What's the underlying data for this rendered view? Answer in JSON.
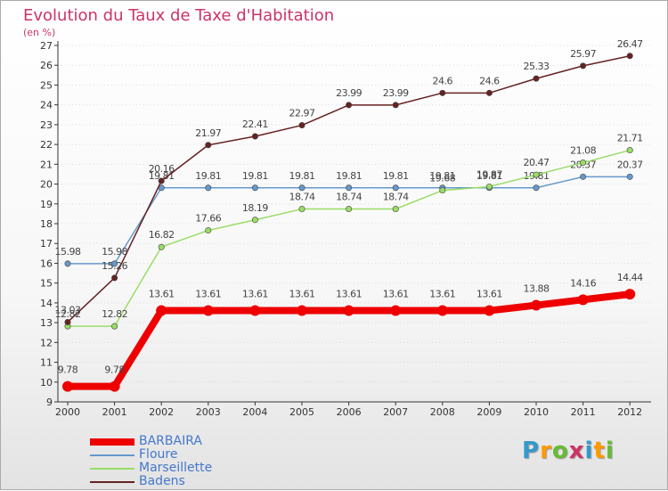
{
  "colors": {
    "BARBAIRA": "#ee0000",
    "Floure": "#6699cc",
    "Marseillette": "#99dd66",
    "Badens": "#662222",
    "axis": "#333333",
    "grid": "#dddddd",
    "title": "#cc3366",
    "legend_text": "#4477cc"
  },
  "logo": {
    "text": "Proxiti",
    "letters": [
      "P",
      "r",
      "o",
      "x",
      "i",
      "t",
      "i"
    ],
    "colors": [
      "#3399cc",
      "#ff9900",
      "#66bb33",
      "#cc3366",
      "#3399cc",
      "#ff9900",
      "#66bb33"
    ]
  },
  "chart_data": {
    "type": "line",
    "title": "Evolution du Taux de Taxe d'Habitation",
    "subtitle": "(en %)",
    "xlabel": "",
    "ylabel": "",
    "x": [
      "2000",
      "2001",
      "2002",
      "2003",
      "2004",
      "2005",
      "2006",
      "2007",
      "2008",
      "2009",
      "2010",
      "2011",
      "2012"
    ],
    "ylim": [
      9,
      27
    ],
    "yticks": [
      "9",
      "10",
      "11",
      "12",
      "13",
      "14",
      "15",
      "16",
      "17",
      "18",
      "19",
      "20",
      "21",
      "22",
      "23",
      "24",
      "25",
      "26",
      "27"
    ],
    "grid": true,
    "legend_position": "bottom-left",
    "series": [
      {
        "name": "BARBAIRA",
        "values": [
          9.78,
          9.78,
          13.61,
          13.61,
          13.61,
          13.61,
          13.61,
          13.61,
          13.61,
          13.61,
          13.88,
          14.16,
          14.44
        ],
        "labels": [
          "9.78",
          "9.78",
          "13.61",
          "13.61",
          "13.61",
          "13.61",
          "13.61",
          "13.61",
          "13.61",
          "13.61",
          "13.88",
          "14.16",
          "14.44"
        ]
      },
      {
        "name": "Floure",
        "values": [
          15.98,
          15.98,
          19.81,
          19.81,
          19.81,
          19.81,
          19.81,
          19.81,
          19.81,
          19.81,
          19.81,
          20.37,
          20.37
        ],
        "labels": [
          "15.98",
          "15.98",
          "19.81",
          "19.81",
          "19.81",
          "19.81",
          "19.81",
          "19.81",
          "19.81",
          "19.81",
          "19.81",
          "20.37",
          "20.37"
        ]
      },
      {
        "name": "Marseillette",
        "values": [
          12.82,
          12.82,
          16.82,
          17.66,
          18.19,
          18.74,
          18.74,
          18.74,
          19.68,
          19.87,
          20.47,
          21.08,
          21.71
        ],
        "labels": [
          "12.82",
          "12.82",
          "16.82",
          "17.66",
          "18.19",
          "18.74",
          "18.74",
          "18.74",
          "19.68",
          "19.87",
          "20.47",
          "21.08",
          "21.71"
        ]
      },
      {
        "name": "Badens",
        "values": [
          13.03,
          15.26,
          20.16,
          21.97,
          22.41,
          22.97,
          23.99,
          23.99,
          24.6,
          24.6,
          25.33,
          25.97,
          26.47
        ],
        "labels": [
          "13.03",
          "15.26",
          "20.16",
          "21.97",
          "22.41",
          "22.97",
          "23.99",
          "23.99",
          "24.6",
          "24.6",
          "25.33",
          "25.97",
          "26.47"
        ]
      }
    ]
  }
}
